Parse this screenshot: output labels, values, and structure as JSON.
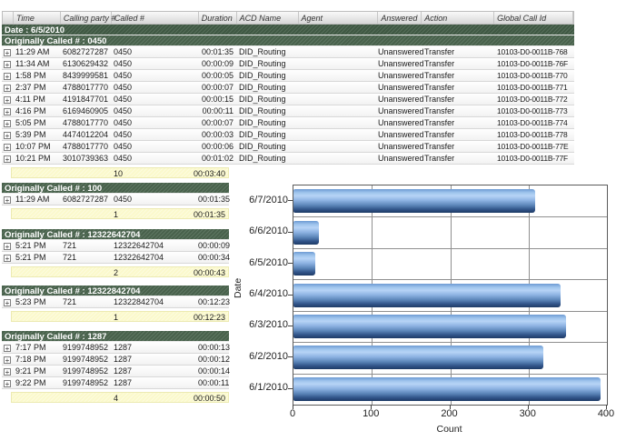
{
  "colors": {
    "group_band_green": "#4c6750",
    "date_band_green": "#435d47",
    "summary_yellow": "#fbf9cc",
    "bar_blue_light": "#b7d4f6",
    "bar_blue_dark": "#1d3a66",
    "grid_gray": "#8f8f8f"
  },
  "report": {
    "column_headers": [
      "",
      "Time",
      "Calling party #",
      "Called #",
      "Duration",
      "ACD Name",
      "Agent",
      "Answered",
      "Action",
      "Global Call Id"
    ],
    "date_header": "Date : 6/5/2010",
    "main_group": {
      "header": "Originally Called # : 0450",
      "rows": [
        {
          "time": "11:29 AM",
          "calling": "6082727287",
          "called": "0450",
          "duration": "00:01:35",
          "acd": "DID_Routing",
          "agent": "",
          "answered": "Unanswered",
          "action": "Transfer",
          "gcid": "10103-D0-0011B-768"
        },
        {
          "time": "11:34 AM",
          "calling": "6130629432",
          "called": "0450",
          "duration": "00:00:09",
          "acd": "DID_Routing",
          "agent": "",
          "answered": "Unanswered",
          "action": "Transfer",
          "gcid": "10103-D0-0011B-76F"
        },
        {
          "time": "1:58 PM",
          "calling": "8439999581",
          "called": "0450",
          "duration": "00:00:05",
          "acd": "DID_Routing",
          "agent": "",
          "answered": "Unanswered",
          "action": "Transfer",
          "gcid": "10103-D0-0011B-770"
        },
        {
          "time": "2:37 PM",
          "calling": "4788017770",
          "called": "0450",
          "duration": "00:00:07",
          "acd": "DID_Routing",
          "agent": "",
          "answered": "Unanswered",
          "action": "Transfer",
          "gcid": "10103-D0-0011B-771"
        },
        {
          "time": "4:11 PM",
          "calling": "4191847701",
          "called": "0450",
          "duration": "00:00:15",
          "acd": "DID_Routing",
          "agent": "",
          "answered": "Unanswered",
          "action": "Transfer",
          "gcid": "10103-D0-0011B-772"
        },
        {
          "time": "4:16 PM",
          "calling": "6169460905",
          "called": "0450",
          "duration": "00:00:11",
          "acd": "DID_Routing",
          "agent": "",
          "answered": "Unanswered",
          "action": "Transfer",
          "gcid": "10103-D0-0011B-773"
        },
        {
          "time": "5:05 PM",
          "calling": "4788017770",
          "called": "0450",
          "duration": "00:00:07",
          "acd": "DID_Routing",
          "agent": "",
          "answered": "Unanswered",
          "action": "Transfer",
          "gcid": "10103-D0-0011B-774"
        },
        {
          "time": "5:39 PM",
          "calling": "4474012204",
          "called": "0450",
          "duration": "00:00:03",
          "acd": "DID_Routing",
          "agent": "",
          "answered": "Unanswered",
          "action": "Transfer",
          "gcid": "10103-D0-0011B-778"
        },
        {
          "time": "10:07 PM",
          "calling": "4788017770",
          "called": "0450",
          "duration": "00:00:06",
          "acd": "DID_Routing",
          "agent": "",
          "answered": "Unanswered",
          "action": "Transfer",
          "gcid": "10103-D0-0011B-77E"
        },
        {
          "time": "10:21 PM",
          "calling": "3010739363",
          "called": "0450",
          "duration": "00:01:02",
          "acd": "DID_Routing",
          "agent": "",
          "answered": "Unanswered",
          "action": "Transfer",
          "gcid": "10103-D0-0011B-77F"
        }
      ],
      "summary": {
        "count": "10",
        "total_duration": "00:03:40"
      }
    },
    "sub_groups": [
      {
        "header": "Originally Called # : 100",
        "rows": [
          {
            "time": "11:29 AM",
            "calling": "6082727287",
            "called": "0450",
            "duration": "00:01:35"
          }
        ],
        "summary": {
          "count": "1",
          "total_duration": "00:01:35"
        }
      },
      {
        "header": "Originally Called # : 12322642704",
        "rows": [
          {
            "time": "5:21 PM",
            "calling": "721",
            "called": "12322642704",
            "duration": "00:00:09"
          },
          {
            "time": "5:21 PM",
            "calling": "721",
            "called": "12322642704",
            "duration": "00:00:34"
          }
        ],
        "summary": {
          "count": "2",
          "total_duration": "00:00:43"
        }
      },
      {
        "header": "Originally Called # : 12322842704",
        "rows": [
          {
            "time": "5:23 PM",
            "calling": "721",
            "called": "12322842704",
            "duration": "00:12:23"
          }
        ],
        "summary": {
          "count": "1",
          "total_duration": "00:12:23"
        }
      },
      {
        "header": "Originally Called # : 1287",
        "rows": [
          {
            "time": "7:17 PM",
            "calling": "9199748952",
            "called": "1287",
            "duration": "00:00:13"
          },
          {
            "time": "7:18 PM",
            "calling": "9199748952",
            "called": "1287",
            "duration": "00:00:12"
          },
          {
            "time": "9:21 PM",
            "calling": "9199748952",
            "called": "1287",
            "duration": "00:00:14"
          },
          {
            "time": "9:22 PM",
            "calling": "9199748952",
            "called": "1287",
            "duration": "00:00:11"
          }
        ],
        "summary": {
          "count": "4",
          "total_duration": "00:00:50"
        }
      }
    ],
    "expand_icon_glyph": "+"
  },
  "chart_data": {
    "type": "bar",
    "orientation": "horizontal",
    "categories": [
      "6/7/2010",
      "6/6/2010",
      "6/5/2010",
      "6/4/2010",
      "6/3/2010",
      "6/2/2010",
      "6/1/2010"
    ],
    "values": [
      308,
      33,
      28,
      341,
      348,
      319,
      392
    ],
    "title": "",
    "xlabel": "Count",
    "ylabel": "Date",
    "xlim": [
      0,
      400
    ],
    "xticks": [
      0,
      100,
      200,
      300,
      400
    ],
    "grid": true,
    "legend": "none"
  }
}
